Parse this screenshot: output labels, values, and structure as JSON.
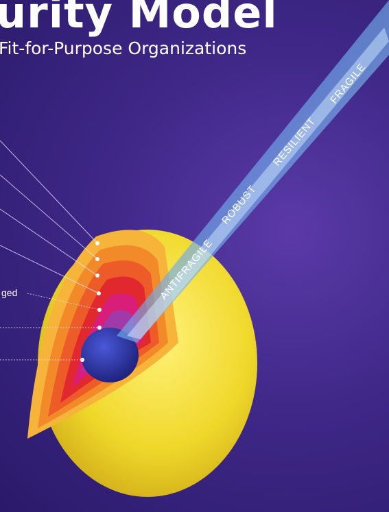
{
  "header": {
    "title": "urity Model",
    "subtitle": "Fit-for-Purpose Organizations"
  },
  "arrow": {
    "stages": [
      "FRAGILE",
      "RESILIENT",
      "ROBUST",
      "ANTIFRAGILE"
    ]
  },
  "side_labels": {
    "partial_label": "ged"
  },
  "colors": {
    "background": "#3f2888",
    "outer_shell": "#f2e03a",
    "core": "#2a2f9a",
    "arrow": "#7fb8f0"
  }
}
